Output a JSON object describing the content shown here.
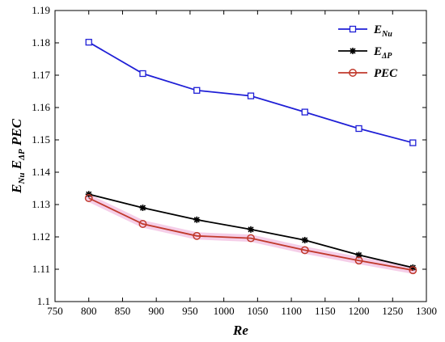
{
  "chart_data": {
    "type": "line",
    "xlabel": "Re",
    "ylabel": {
      "main": "E",
      "sub1": "Nu",
      "mid": " E",
      "sub2": "ΔP",
      "tail": " PEC"
    },
    "xlim": [
      750,
      1300
    ],
    "ylim": [
      1.1,
      1.19
    ],
    "xticks": [
      750,
      800,
      850,
      900,
      950,
      1000,
      1050,
      1100,
      1150,
      1200,
      1250,
      1300
    ],
    "yticks": [
      1.1,
      1.11,
      1.12,
      1.13,
      1.14,
      1.15,
      1.16,
      1.17,
      1.18,
      1.19
    ],
    "xtick_labels": [
      "750",
      "800",
      "850",
      "900",
      "950",
      "1000",
      "1050",
      "1100",
      "1150",
      "1200",
      "1250",
      "1300"
    ],
    "ytick_labels": [
      "1.1",
      "1.11",
      "1.12",
      "1.13",
      "1.14",
      "1.15",
      "1.16",
      "1.17",
      "1.18",
      "1.19"
    ],
    "x": [
      800,
      880,
      960,
      1040,
      1120,
      1200,
      1280
    ],
    "series": [
      {
        "name": "E_Nu",
        "label_main": "E",
        "label_sub": "Nu",
        "color": "#1f1fd6",
        "marker": "square",
        "values": [
          1.1802,
          1.1705,
          1.1653,
          1.1636,
          1.1586,
          1.1535,
          1.1491
        ]
      },
      {
        "name": "E_ΔP",
        "label_main": "E",
        "label_sub": "ΔP",
        "color": "#000000",
        "marker": "star",
        "values": [
          1.1332,
          1.129,
          1.1253,
          1.1223,
          1.119,
          1.1144,
          1.1105
        ]
      },
      {
        "name": "PEC",
        "label_main": "PEC",
        "label_sub": "",
        "color": "#c0392b",
        "marker": "circle",
        "values": [
          1.132,
          1.124,
          1.1203,
          1.1196,
          1.1159,
          1.1127,
          1.1097
        ]
      }
    ],
    "legend_position": "top-right",
    "grid": false
  }
}
